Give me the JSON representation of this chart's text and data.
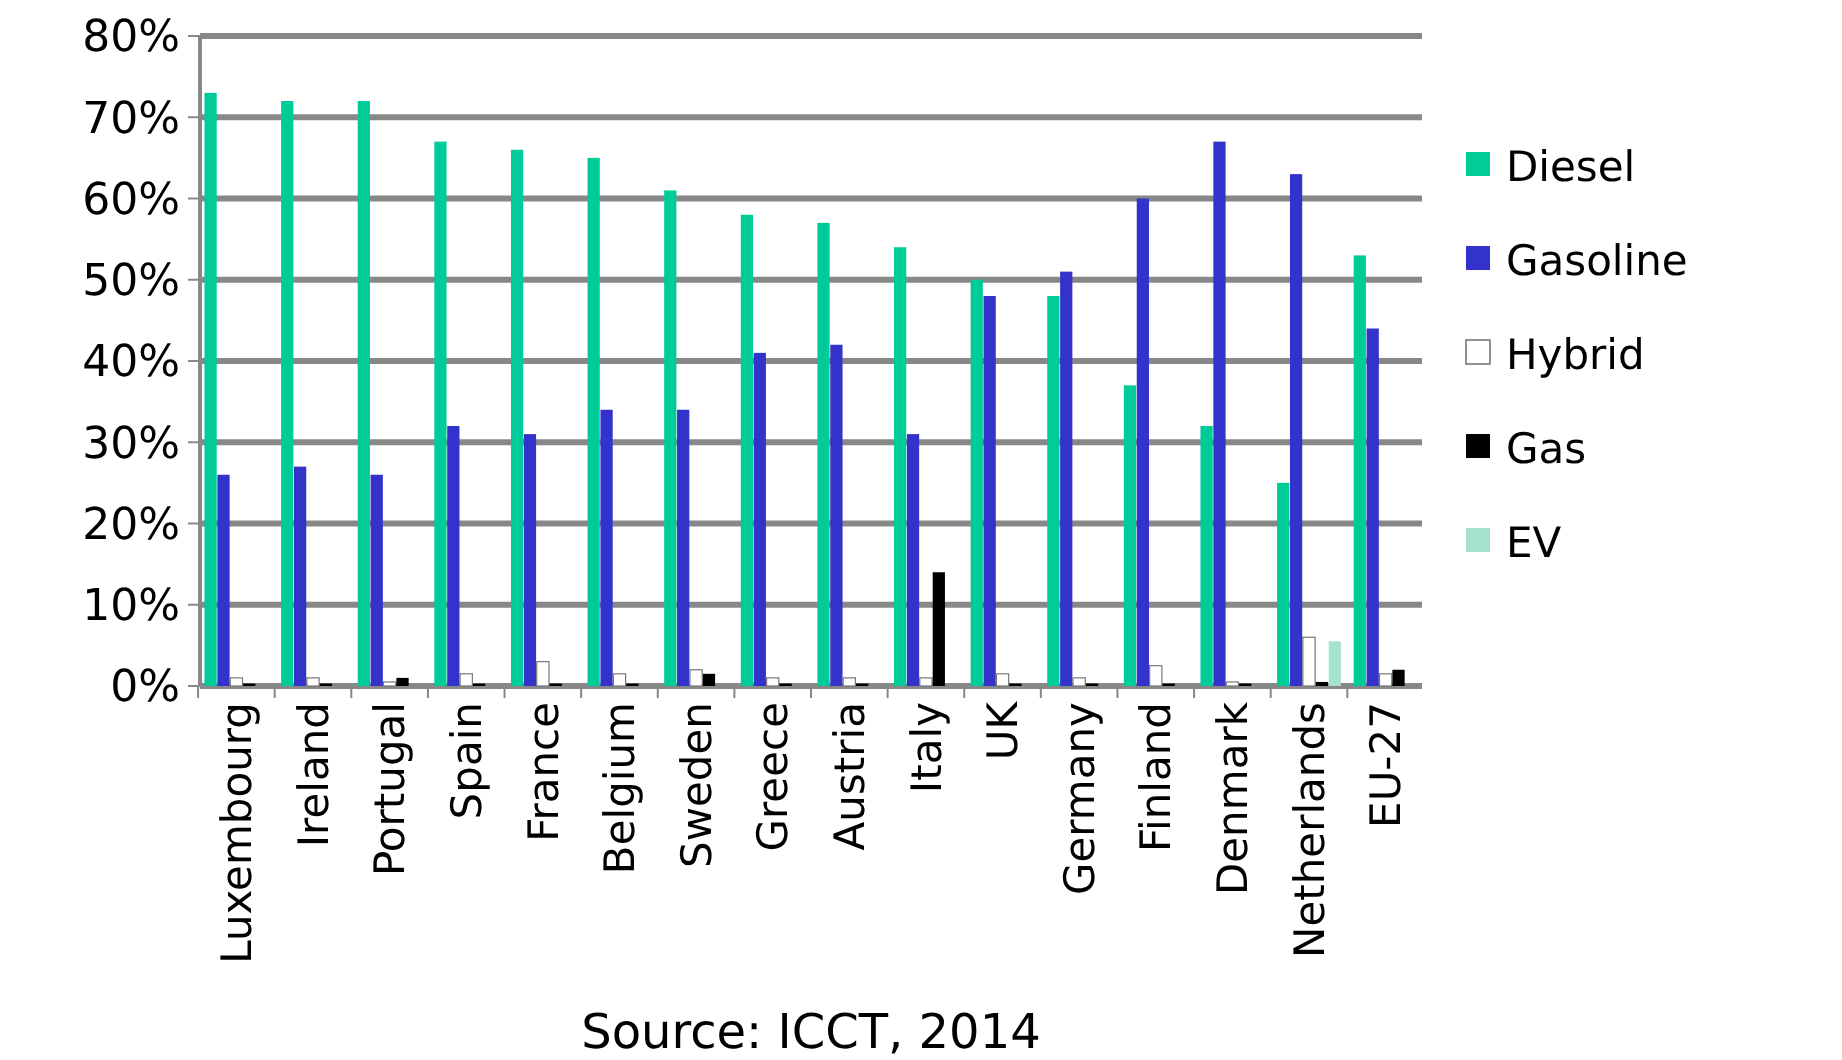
{
  "chart_data": {
    "type": "bar",
    "categories": [
      "Luxembourg",
      "Ireland",
      "Portugal",
      "Spain",
      "France",
      "Belgium",
      "Sweden",
      "Greece",
      "Austria",
      "Italy",
      "UK",
      "Germany",
      "Finland",
      "Denmark",
      "Netherlands",
      "EU-27"
    ],
    "series": [
      {
        "name": "Diesel",
        "color": "#00cc99",
        "values": [
          73,
          72,
          72,
          67,
          66,
          65,
          61,
          58,
          57,
          54,
          50,
          48,
          37,
          32,
          25,
          53
        ]
      },
      {
        "name": "Gasoline",
        "color": "#3333cc",
        "values": [
          26,
          27,
          26,
          32,
          31,
          34,
          34,
          41,
          42,
          31,
          48,
          51,
          60,
          67,
          63,
          44
        ]
      },
      {
        "name": "Hybrid",
        "color": "#ffffff",
        "values": [
          1,
          1,
          0.5,
          1.5,
          3,
          1.5,
          2,
          1,
          1,
          1,
          1.5,
          1,
          2.5,
          0.5,
          6,
          1.5
        ]
      },
      {
        "name": "Gas",
        "color": "#000000",
        "values": [
          0.3,
          0.3,
          1,
          0.3,
          0.3,
          0.3,
          1.5,
          0.3,
          0.3,
          14,
          0.3,
          0.3,
          0.3,
          0.3,
          0.5,
          2
        ]
      },
      {
        "name": "EV",
        "color": "#a6e3cc",
        "values": [
          0,
          0,
          0,
          0,
          0,
          0,
          0,
          0,
          0,
          0,
          0,
          0,
          0,
          0,
          5.5,
          0
        ]
      }
    ],
    "ylim": [
      0,
      80
    ],
    "yticks": [
      {
        "value": 0,
        "label": "0%"
      },
      {
        "value": 10,
        "label": "10%"
      },
      {
        "value": 20,
        "label": "20%"
      },
      {
        "value": 30,
        "label": "30%"
      },
      {
        "value": 40,
        "label": "40%"
      },
      {
        "value": 50,
        "label": "50%"
      },
      {
        "value": 60,
        "label": "60%"
      },
      {
        "value": 70,
        "label": "70%"
      },
      {
        "value": 80,
        "label": "80%"
      }
    ],
    "grid": "y",
    "legend": "right",
    "annotations": [
      "Source: ICCT, 2014"
    ]
  }
}
